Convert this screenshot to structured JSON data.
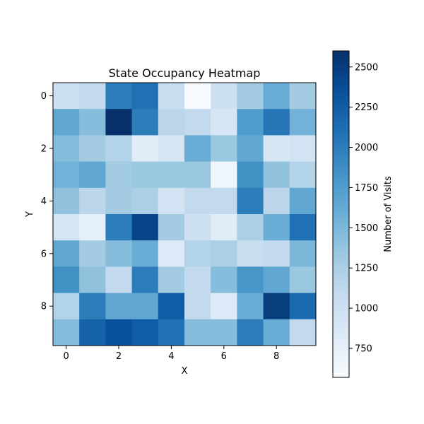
{
  "chart_data": {
    "type": "heatmap",
    "title": "State Occupancy Heatmap",
    "xlabel": "X",
    "ylabel": "Y",
    "colorbar_label": "Number of Visits",
    "colormap": "Blues",
    "x_ticks": [
      0,
      2,
      4,
      6,
      8
    ],
    "y_ticks": [
      0,
      2,
      4,
      6,
      8
    ],
    "colorbar_ticks": [
      750,
      1000,
      1250,
      1500,
      1750,
      2000,
      2250,
      2500
    ],
    "vmin": 570,
    "vmax": 2600,
    "grid": false,
    "values": [
      [
        1000,
        1100,
        2000,
        2100,
        1050,
        580,
        1000,
        1300,
        1600,
        1300
      ],
      [
        1650,
        1450,
        2600,
        2000,
        1150,
        1100,
        900,
        1750,
        2050,
        1550
      ],
      [
        1450,
        1300,
        1200,
        800,
        900,
        1600,
        1350,
        1650,
        900,
        950
      ],
      [
        1550,
        1650,
        1300,
        1350,
        1350,
        1350,
        650,
        1850,
        1400,
        1200
      ],
      [
        1400,
        1150,
        1300,
        1250,
        950,
        1100,
        1100,
        2000,
        1150,
        1650
      ],
      [
        900,
        750,
        2000,
        2450,
        1300,
        1000,
        800,
        1250,
        1600,
        2100
      ],
      [
        1650,
        1300,
        1450,
        1600,
        850,
        1200,
        1250,
        1050,
        1100,
        1500
      ],
      [
        1850,
        1400,
        1100,
        2000,
        1300,
        1100,
        1450,
        1800,
        1650,
        1350
      ],
      [
        1200,
        2000,
        1650,
        1650,
        2250,
        1100,
        850,
        1600,
        2500,
        2150
      ],
      [
        1450,
        2200,
        2350,
        2250,
        2100,
        1450,
        1450,
        2000,
        1600,
        1100
      ]
    ]
  }
}
